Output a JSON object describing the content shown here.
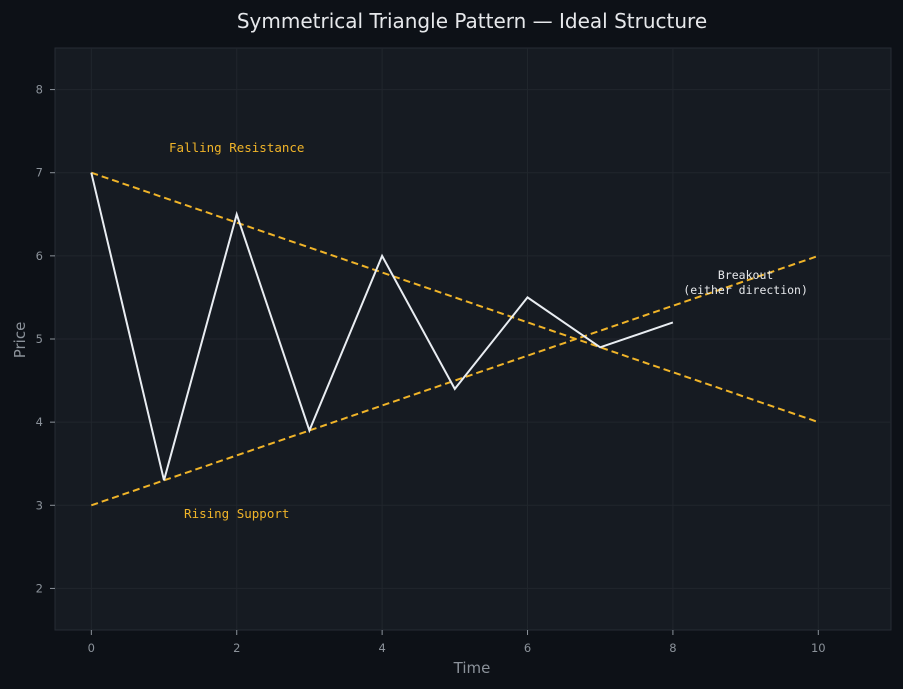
{
  "chart_data": {
    "type": "line",
    "title": "Symmetrical Triangle Pattern — Ideal Structure",
    "xlabel": "Time",
    "ylabel": "Price",
    "xlim": [
      -0.5,
      11
    ],
    "ylim": [
      1.5,
      8.5
    ],
    "xticks": [
      0,
      2,
      4,
      6,
      8,
      10
    ],
    "yticks": [
      2,
      3,
      4,
      5,
      6,
      7,
      8
    ],
    "grid": true,
    "series": [
      {
        "style": "solid",
        "color": "#e9edf2",
        "x": [
          0,
          1,
          2,
          3,
          4,
          5,
          6,
          7,
          8
        ],
        "y": [
          7.0,
          3.3,
          6.5,
          3.9,
          6.0,
          4.4,
          5.5,
          4.9,
          5.2
        ]
      },
      {
        "style": "dashed",
        "color": "#f0b429",
        "x": [
          0,
          10
        ],
        "y": [
          7.0,
          4.0
        ]
      },
      {
        "style": "dashed",
        "color": "#f0b429",
        "x": [
          0,
          10
        ],
        "y": [
          3.0,
          6.0
        ]
      }
    ],
    "annotations": [
      {
        "text": "Falling Resistance",
        "x": 2,
        "y": 7.25,
        "color": "#f0b429"
      },
      {
        "text": "Rising Support",
        "x": 2,
        "y": 2.85,
        "color": "#f0b429"
      },
      {
        "lines": [
          "Breakout",
          "(either direction)"
        ],
        "x": 9.0,
        "y": 5.72,
        "color": "#e6e8eb"
      }
    ],
    "colors": {
      "figure_background": "#0d1117",
      "plot_background": "#161b22",
      "grid": "#21262d",
      "axis_text": "#8b929a",
      "title_text": "#e6e8eb"
    }
  }
}
